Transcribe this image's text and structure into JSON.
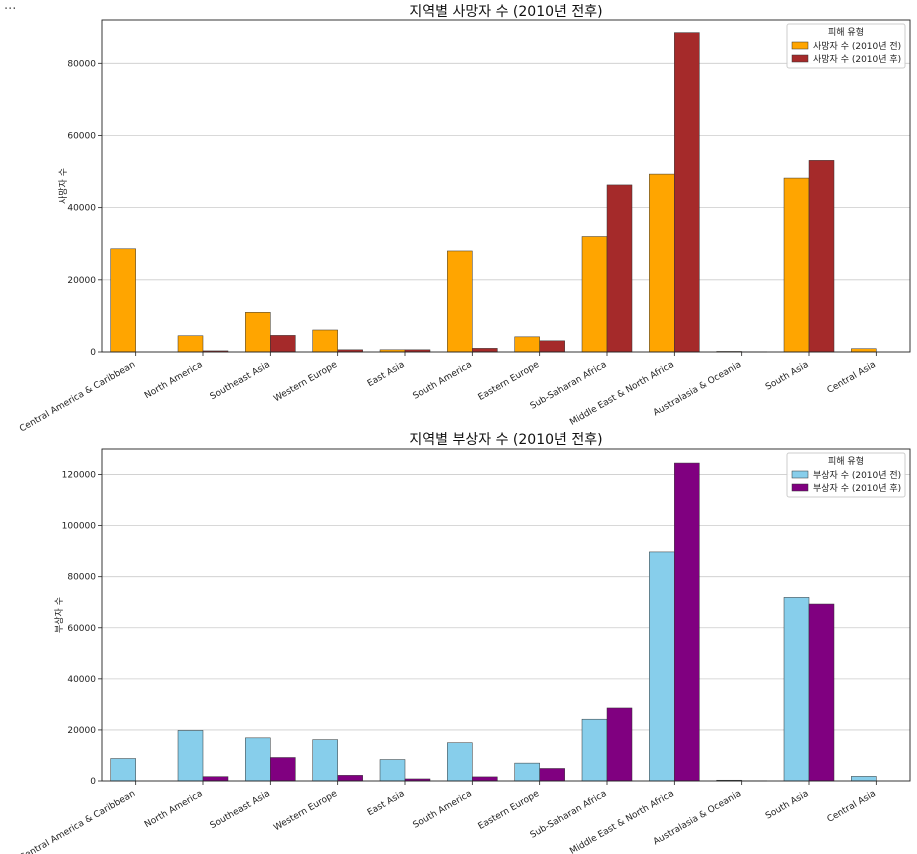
{
  "menu_glyph": "...",
  "chart_data": [
    {
      "type": "bar",
      "title": "지역별 사망자 수 (2010년 전후)",
      "xlabel": "",
      "ylabel": "사망자 수",
      "ylim": [
        0,
        92000
      ],
      "yticks": [
        0,
        20000,
        40000,
        60000,
        80000
      ],
      "grid": "horizontal",
      "legend_title": "피해 유형",
      "legend_position": "top-right",
      "categories": [
        "Central America & Caribbean",
        "North America",
        "Southeast Asia",
        "Western Europe",
        "East Asia",
        "South America",
        "Eastern Europe",
        "Sub-Saharan Africa",
        "Middle East & North Africa",
        "Australasia & Oceania",
        "South Asia",
        "Central Asia"
      ],
      "series": [
        {
          "name": "사망자 수 (2010년 전)",
          "color": "#FFA500",
          "values": [
            28600,
            4500,
            11000,
            6100,
            600,
            28000,
            4200,
            32000,
            49300,
            150,
            48200,
            900
          ]
        },
        {
          "name": "사망자 수 (2010년 후)",
          "color": "#A52A2A",
          "values": [
            0,
            300,
            4600,
            600,
            600,
            1000,
            3100,
            46300,
            88500,
            50,
            53100,
            0
          ]
        }
      ]
    },
    {
      "type": "bar",
      "title": "지역별 부상자 수 (2010년 전후)",
      "xlabel": "",
      "ylabel": "부상자 수",
      "ylim": [
        0,
        130000
      ],
      "yticks": [
        0,
        20000,
        40000,
        60000,
        80000,
        100000,
        120000
      ],
      "grid": "horizontal",
      "legend_title": "피해 유형",
      "legend_position": "top-right",
      "categories": [
        "Central America & Caribbean",
        "North America",
        "Southeast Asia",
        "Western Europe",
        "East Asia",
        "South America",
        "Eastern Europe",
        "Sub-Saharan Africa",
        "Middle East & North Africa",
        "Australasia & Oceania",
        "South Asia",
        "Central Asia"
      ],
      "series": [
        {
          "name": "부상자 수 (2010년 전)",
          "color": "#87CEEB",
          "values": [
            8800,
            19800,
            16900,
            16200,
            8400,
            15000,
            7000,
            24200,
            89700,
            300,
            71900,
            1800
          ]
        },
        {
          "name": "부상자 수 (2010년 후)",
          "color": "#800080",
          "values": [
            0,
            1700,
            9200,
            2200,
            800,
            1600,
            4900,
            28600,
            124500,
            100,
            69300,
            0
          ]
        }
      ]
    }
  ]
}
